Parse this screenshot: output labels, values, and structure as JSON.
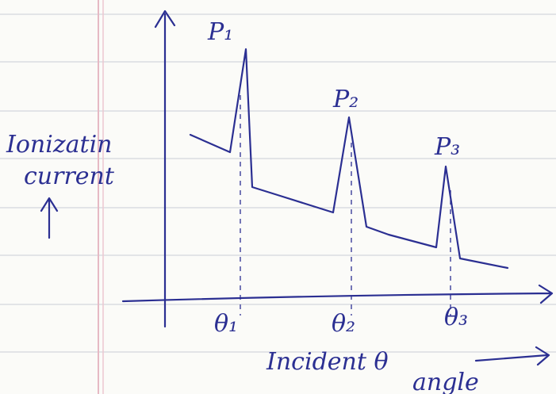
{
  "peaks": [
    {
      "label": "P₁",
      "angle": "θ₁"
    },
    {
      "label": "P₂",
      "angle": "θ₂"
    },
    {
      "label": "P₃",
      "angle": "θ₃"
    }
  ],
  "y_axis_label": {
    "line1": "Ionizatin",
    "line2": "current"
  },
  "x_axis_label": {
    "line1": "Incident θ",
    "line2": "angle"
  }
}
